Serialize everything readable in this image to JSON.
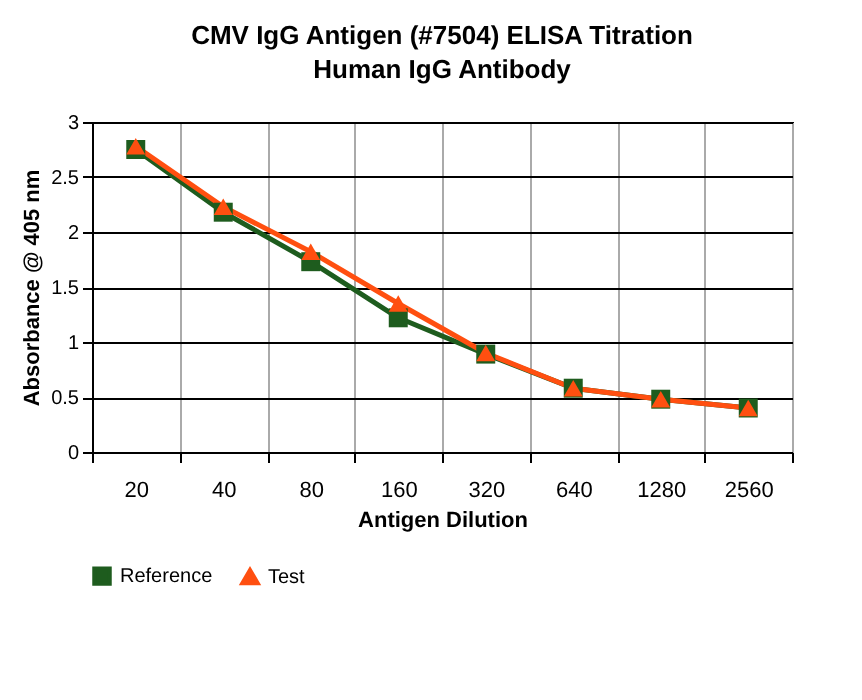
{
  "chart_data": {
    "type": "line",
    "title": "CMV IgG Antigen  (#7504) ELISA Titration",
    "subtitle": "Human IgG Antibody",
    "xlabel": "Antigen Dilution",
    "ylabel": "Absorbance @ 405 nm",
    "categories": [
      "20",
      "40",
      "80",
      "160",
      "320",
      "640",
      "1280",
      "2560"
    ],
    "series": [
      {
        "name": "Reference",
        "color": "#1e5c1e",
        "marker": "square",
        "values": [
          2.75,
          2.18,
          1.73,
          1.22,
          0.89,
          0.58,
          0.48,
          0.4
        ]
      },
      {
        "name": "Test",
        "color": "#ff4f10",
        "marker": "triangle",
        "values": [
          2.78,
          2.23,
          1.82,
          1.35,
          0.9,
          0.58,
          0.48,
          0.4
        ]
      }
    ],
    "ylim": [
      0,
      3
    ],
    "yticks": [
      0,
      0.5,
      1,
      1.5,
      2,
      2.5,
      3
    ],
    "grid": true,
    "legend": "bottom"
  }
}
